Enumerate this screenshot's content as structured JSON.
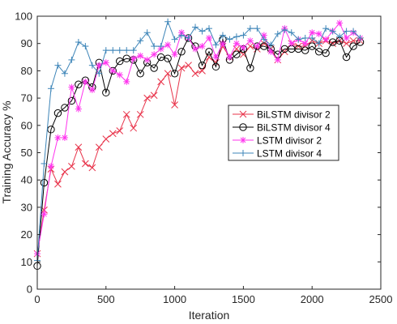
{
  "chart_data": {
    "type": "line",
    "title": "",
    "xlabel": "Iteration",
    "ylabel": "Training Accuracy %",
    "xlim": [
      0,
      2500
    ],
    "ylim": [
      0,
      100
    ],
    "xticks": [
      0,
      500,
      1000,
      1500,
      2000,
      2500
    ],
    "yticks": [
      0,
      10,
      20,
      30,
      40,
      50,
      60,
      70,
      80,
      90,
      100
    ],
    "grid": false,
    "legend_position": "center-right",
    "series": [
      {
        "name": "BiLSTM divisor 2",
        "color": "#e8334a",
        "marker": "x",
        "x": [
          0,
          50,
          100,
          150,
          200,
          250,
          300,
          350,
          400,
          450,
          500,
          550,
          600,
          650,
          700,
          750,
          800,
          850,
          900,
          950,
          1000,
          1050,
          1100,
          1150,
          1200,
          1250,
          1300,
          1350,
          1400,
          1450,
          1500,
          1550,
          1600,
          1650,
          1700,
          1750,
          1800,
          1850,
          1900,
          1950,
          2000,
          2050,
          2100,
          2150,
          2200,
          2250,
          2300,
          2350
        ],
        "y": [
          13,
          29,
          44,
          38.5,
          43,
          45,
          52,
          46,
          44.5,
          52,
          55,
          57,
          58,
          64,
          59,
          64,
          70,
          71,
          76,
          79,
          67.5,
          81,
          82,
          79,
          80,
          85,
          83,
          89,
          85,
          88,
          86,
          89,
          88,
          90,
          88,
          84,
          87,
          90,
          89,
          89,
          91,
          90,
          91,
          90,
          91,
          90,
          91,
          91
        ]
      },
      {
        "name": "BiLSTM divisor 4",
        "color": "#000000",
        "marker": "o",
        "x": [
          0,
          50,
          100,
          150,
          200,
          250,
          300,
          350,
          400,
          450,
          500,
          550,
          600,
          650,
          700,
          750,
          800,
          850,
          900,
          950,
          1000,
          1050,
          1100,
          1150,
          1200,
          1250,
          1300,
          1350,
          1400,
          1450,
          1500,
          1550,
          1600,
          1650,
          1700,
          1750,
          1800,
          1850,
          1900,
          1950,
          2000,
          2050,
          2100,
          2150,
          2200,
          2250,
          2300,
          2350
        ],
        "y": [
          8.5,
          39,
          58.5,
          64.5,
          66.5,
          69,
          75,
          76.5,
          74,
          83,
          72,
          80,
          83.5,
          84.5,
          84,
          79,
          83,
          81,
          85,
          84.5,
          79,
          87,
          92,
          89,
          82,
          87,
          81.5,
          91.5,
          84,
          86,
          88,
          81,
          89,
          89,
          88,
          86,
          88,
          88,
          88,
          87.5,
          89,
          87,
          86.5,
          90.5,
          91,
          85,
          89,
          90.5
        ]
      },
      {
        "name": "LSTM divisor 2",
        "color": "#ff33ee",
        "marker": "*",
        "x": [
          0,
          50,
          100,
          150,
          200,
          250,
          300,
          350,
          400,
          450,
          500,
          550,
          600,
          650,
          700,
          750,
          800,
          850,
          900,
          950,
          1000,
          1050,
          1100,
          1150,
          1200,
          1250,
          1300,
          1350,
          1400,
          1450,
          1500,
          1550,
          1600,
          1650,
          1700,
          1750,
          1800,
          1850,
          1900,
          1950,
          2000,
          2050,
          2100,
          2150,
          2200,
          2250,
          2300,
          2350
        ],
        "y": [
          13,
          27.5,
          45,
          55.5,
          55.5,
          74,
          66,
          76,
          73,
          82,
          83,
          80,
          78.5,
          76,
          84.5,
          85.5,
          84,
          86,
          88,
          89.5,
          86,
          94,
          92,
          88,
          89,
          92,
          85,
          90,
          85,
          90,
          88.5,
          91,
          89,
          93,
          87,
          84,
          95.5,
          90,
          91.5,
          90,
          94,
          93.5,
          91.5,
          94.5,
          97.5,
          92,
          94,
          92
        ]
      },
      {
        "name": "LSTM divisor 4",
        "color": "#3d85b8",
        "marker": "+",
        "x": [
          0,
          50,
          100,
          150,
          200,
          250,
          300,
          350,
          400,
          450,
          500,
          550,
          600,
          650,
          700,
          750,
          800,
          850,
          900,
          950,
          1000,
          1050,
          1100,
          1150,
          1200,
          1250,
          1300,
          1350,
          1400,
          1450,
          1500,
          1550,
          1600,
          1650,
          1700,
          1750,
          1800,
          1850,
          1900,
          1950,
          2000,
          2050,
          2100,
          2150,
          2200,
          2250,
          2300,
          2350
        ],
        "y": [
          10.5,
          46,
          73.5,
          82,
          79,
          84,
          90.5,
          89,
          82,
          79,
          87.5,
          87.5,
          87.5,
          87.5,
          87.5,
          91,
          94,
          89,
          89,
          98,
          91.5,
          93,
          92,
          96,
          94.5,
          95.5,
          89.5,
          93,
          91.5,
          92.5,
          93,
          95.5,
          95.5,
          91.5,
          89.5,
          93.5,
          95,
          94,
          91.5,
          92,
          92,
          90,
          95.5,
          94.5,
          92.5,
          94.5,
          94.5,
          92
        ]
      }
    ]
  }
}
